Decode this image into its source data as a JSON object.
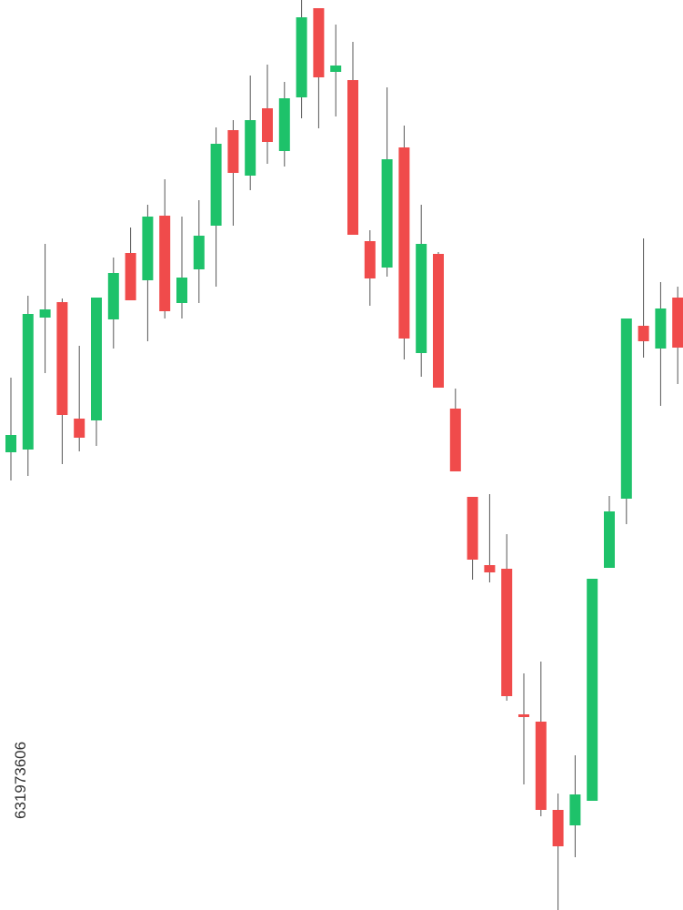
{
  "chart_data": {
    "type": "candlestick",
    "up_color": "#1ec26a",
    "down_color": "#f04b4b",
    "wick_color": "#555555",
    "open": [
      503,
      506,
      651,
      668,
      540,
      538,
      649,
      722,
      692,
      763,
      667,
      704,
      752,
      857,
      807,
      881,
      834,
      893,
      991,
      921,
      912,
      735,
      706,
      838,
      612,
      721,
      551,
      454,
      379,
      375,
      215,
      207,
      110,
      93,
      120,
      376,
      452,
      642,
      617,
      673
    ],
    "close": [
      522,
      655,
      660,
      544,
      519,
      673,
      700,
      670,
      762,
      658,
      695,
      741,
      842,
      810,
      868,
      844,
      892,
      981,
      915,
      928,
      742,
      694,
      825,
      628,
      732,
      574,
      482,
      385,
      371,
      235,
      212,
      110,
      70,
      127,
      364,
      438,
      650,
      625,
      661,
      618
    ],
    "high": [
      585,
      675,
      732,
      672,
      620,
      673,
      717,
      750,
      775,
      803,
      762,
      780,
      860,
      868,
      917,
      929,
      910,
      1000,
      991,
      973,
      954,
      747,
      904,
      862,
      775,
      723,
      573,
      454,
      457,
      413,
      260,
      273,
      128,
      170,
      364,
      455,
      650,
      738,
      690,
      685
    ],
    "low": [
      472,
      477,
      590,
      490,
      504,
      510,
      617,
      670,
      625,
      650,
      650,
      667,
      685,
      752,
      791,
      820,
      817,
      870,
      859,
      872,
      742,
      664,
      696,
      605,
      586,
      574,
      482,
      363,
      360,
      230,
      138,
      103,
      0,
      58,
      120,
      376,
      424,
      607,
      554,
      578
    ],
    "watermark_id": "631973606"
  }
}
